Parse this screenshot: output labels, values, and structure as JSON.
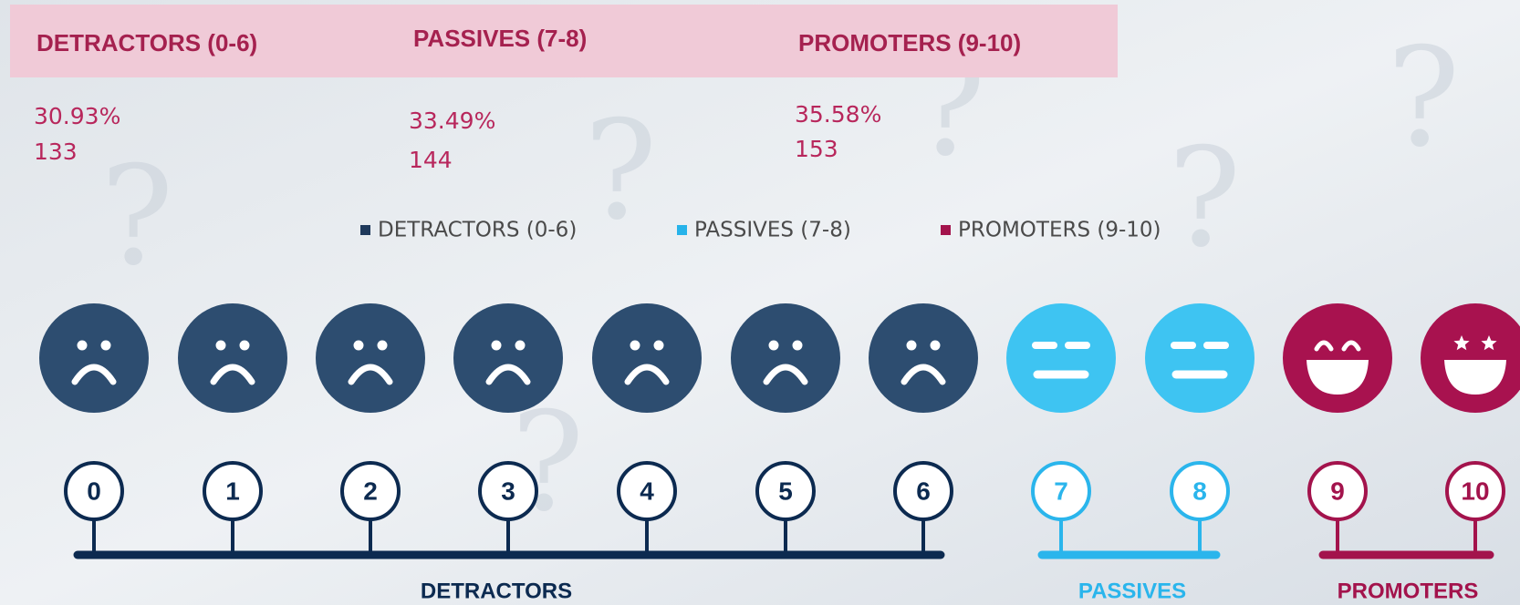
{
  "header": {
    "columns": [
      "DETRACTORS (0-6)",
      "PASSIVES (7-8)",
      "PROMOTERS (9-10)"
    ]
  },
  "stats": [
    {
      "percent": "30.93%",
      "count": "133"
    },
    {
      "percent": "33.49%",
      "count": "144"
    },
    {
      "percent": "35.58%",
      "count": "153"
    }
  ],
  "legend": [
    {
      "label": "DETRACTORS (0-6)",
      "color": "#1f3a5c"
    },
    {
      "label": "PASSIVES (7-8)",
      "color": "#27b3ea"
    },
    {
      "label": "PROMOTERS (9-10)",
      "color": "#a3134c"
    }
  ],
  "scale": {
    "groups": [
      {
        "label": "DETRACTORS",
        "face_color": "#2d4d70",
        "line_color": "#0c2a50",
        "scores": [
          "0",
          "1",
          "2",
          "3",
          "4",
          "5",
          "6"
        ]
      },
      {
        "label": "PASSIVES",
        "face_color": "#3ec4f2",
        "line_color": "#2ab5ec",
        "scores": [
          "7",
          "8"
        ]
      },
      {
        "label": "PROMOTERS",
        "face_color": "#a8124f",
        "line_color": "#a3134c",
        "scores": [
          "9",
          "10"
        ]
      }
    ]
  }
}
